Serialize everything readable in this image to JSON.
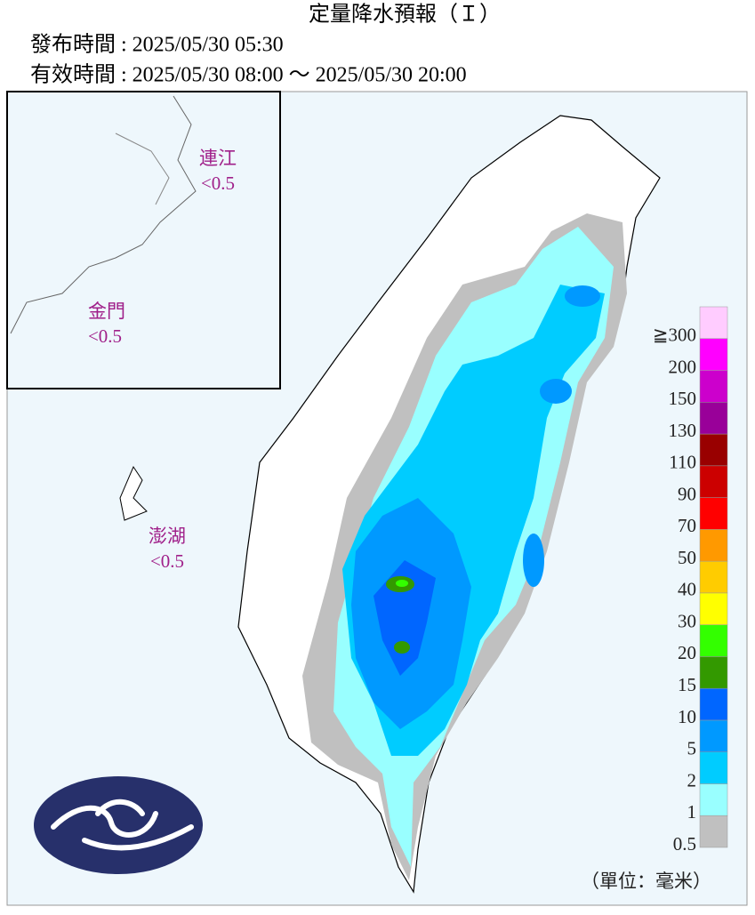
{
  "title": "定量降水預報（Ｉ）",
  "issued": "發布時間 : 2025/05/30 05:30",
  "valid": "有效時間 : 2025/05/30 08:00 ～ 2025/05/30 20:00",
  "regions": [
    {
      "name": "連江",
      "value": "<0.5"
    },
    {
      "name": "金門",
      "value": "<0.5"
    },
    {
      "name": "澎湖",
      "value": "<0.5"
    }
  ],
  "legend": {
    "levels": [
      0.5,
      1,
      2,
      5,
      10,
      15,
      20,
      30,
      40,
      50,
      70,
      90,
      110,
      130,
      150,
      200,
      {
        "value": 300,
        "label": "≧300"
      }
    ],
    "colors": [
      "#c0c0c0",
      "#99ffff",
      "#00ccff",
      "#0099ff",
      "#0066ff",
      "#339900",
      "#33ff00",
      "#ffff00",
      "#ffcc00",
      "#ff9900",
      "#ff0000",
      "#cc0000",
      "#990000",
      "#990099",
      "#cc00cc",
      "#ff00ff",
      "#ffccff"
    ]
  },
  "unit": "（單位：毫米）"
}
